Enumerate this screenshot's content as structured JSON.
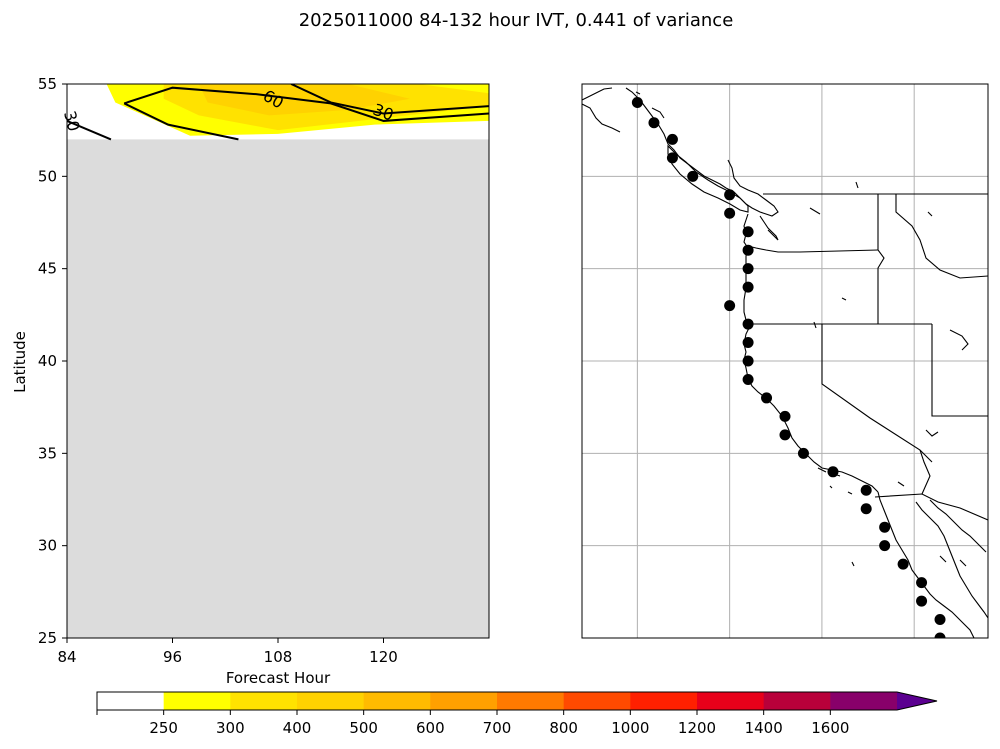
{
  "title": "2025011000 84-132 hour IVT, 0.441 of variance",
  "chart_data": [
    {
      "type": "heatmap",
      "panel": "hovmoller",
      "xlabel": "Forecast Hour",
      "ylabel": "Latitude",
      "xlim": [
        84,
        132
      ],
      "ylim": [
        25,
        55
      ],
      "xticks": [
        "84",
        "96",
        "108",
        "120"
      ],
      "yticks": [
        "25",
        "30",
        "35",
        "40",
        "45",
        "50",
        "55"
      ],
      "masked_region": {
        "lat_max": 52,
        "color": "#dcdcdc"
      },
      "filled_regions": [
        {
          "level": "250-300",
          "color": "#ffff00",
          "points": [
            [
              88.5,
              55
            ],
            [
              132,
              55
            ],
            [
              132,
              53
            ],
            [
              119,
              52.8
            ],
            [
              108,
              52.3
            ],
            [
              98,
              52.2
            ],
            [
              89.5,
              54.0
            ]
          ]
        },
        {
          "level": "300-400",
          "color": "#ffe200",
          "points": [
            [
              95,
              55
            ],
            [
              124,
              55
            ],
            [
              132,
              54.5
            ],
            [
              132,
              53.8
            ],
            [
              119,
              53.1
            ],
            [
              108,
              52.5
            ],
            [
              99,
              53.3
            ],
            [
              95,
              54.2
            ]
          ]
        },
        {
          "level": "400-500",
          "color": "#ffd200",
          "points": [
            [
              99,
              55
            ],
            [
              116,
              55
            ],
            [
              123,
              54.2
            ],
            [
              116,
              53.6
            ],
            [
              107,
              53.3
            ],
            [
              100,
              54.0
            ]
          ]
        }
      ],
      "contours": [
        {
          "level": "30",
          "points": [
            [
              90.5,
              53.95
            ],
            [
              96,
              54.8
            ],
            [
              105.5,
              54.45
            ],
            [
              114,
              53.95
            ],
            [
              120,
              53.0
            ],
            [
              132,
              53.4
            ]
          ]
        },
        {
          "level": "60",
          "points": [
            [
              90.5,
              53.95
            ],
            [
              95.5,
              52.8
            ],
            [
              103.5,
              52.0
            ]
          ]
        },
        {
          "level": "60b",
          "points": [
            [
              109.5,
              55
            ],
            [
              114,
              54.0
            ],
            [
              120,
              53.4
            ],
            [
              132,
              53.8
            ]
          ]
        },
        {
          "level": "30b",
          "points": [
            [
              84,
              53.0
            ],
            [
              89,
              52.0
            ]
          ]
        }
      ],
      "contour_labels": [
        {
          "text": "60",
          "x": 107.5,
          "y": 54.2,
          "rotate": 30
        },
        {
          "text": "30",
          "x": 120,
          "y": 53.5,
          "rotate": 20
        },
        {
          "text": "30",
          "x": 84.6,
          "y": 53.0,
          "rotate": 75
        }
      ]
    },
    {
      "type": "scatter",
      "panel": "map",
      "lon_range": [
        -130,
        -108
      ],
      "lat_range": [
        25,
        55
      ],
      "gridlines": true,
      "grid_lons": [
        -127,
        -122,
        -117,
        -112
      ],
      "grid_lats": [
        30,
        35,
        40,
        45,
        50
      ],
      "points": [
        [
          -127,
          54
        ],
        [
          -126.1,
          52.9
        ],
        [
          -125.1,
          52
        ],
        [
          -125.1,
          51
        ],
        [
          -124,
          50
        ],
        [
          -122,
          49
        ],
        [
          -122,
          48
        ],
        [
          -121,
          47
        ],
        [
          -121,
          46
        ],
        [
          -121,
          45
        ],
        [
          -121,
          44
        ],
        [
          -122,
          43
        ],
        [
          -121,
          42
        ],
        [
          -121,
          41
        ],
        [
          -121,
          40
        ],
        [
          -121,
          39
        ],
        [
          -120,
          38
        ],
        [
          -119,
          37
        ],
        [
          -119,
          36
        ],
        [
          -118,
          35
        ],
        [
          -116.4,
          34
        ],
        [
          -114.6,
          33
        ],
        [
          -114.6,
          32
        ],
        [
          -113.6,
          31
        ],
        [
          -113.6,
          30
        ],
        [
          -112.6,
          29
        ],
        [
          -111.6,
          28
        ],
        [
          -111.6,
          27
        ],
        [
          -110.6,
          26
        ],
        [
          -110.6,
          25
        ]
      ]
    }
  ],
  "colorbar": {
    "ticks": [
      "250",
      "300",
      "400",
      "500",
      "600",
      "700",
      "800",
      "1000",
      "1200",
      "1400",
      "1600"
    ],
    "colors": [
      "#ffffff",
      "#ffff00",
      "#ffe200",
      "#ffd200",
      "#ffbb00",
      "#ffa000",
      "#ff7a00",
      "#ff4a00",
      "#ff2000",
      "#e8001a",
      "#b8003a",
      "#88006a",
      "#5b0090"
    ],
    "extend": "max"
  }
}
